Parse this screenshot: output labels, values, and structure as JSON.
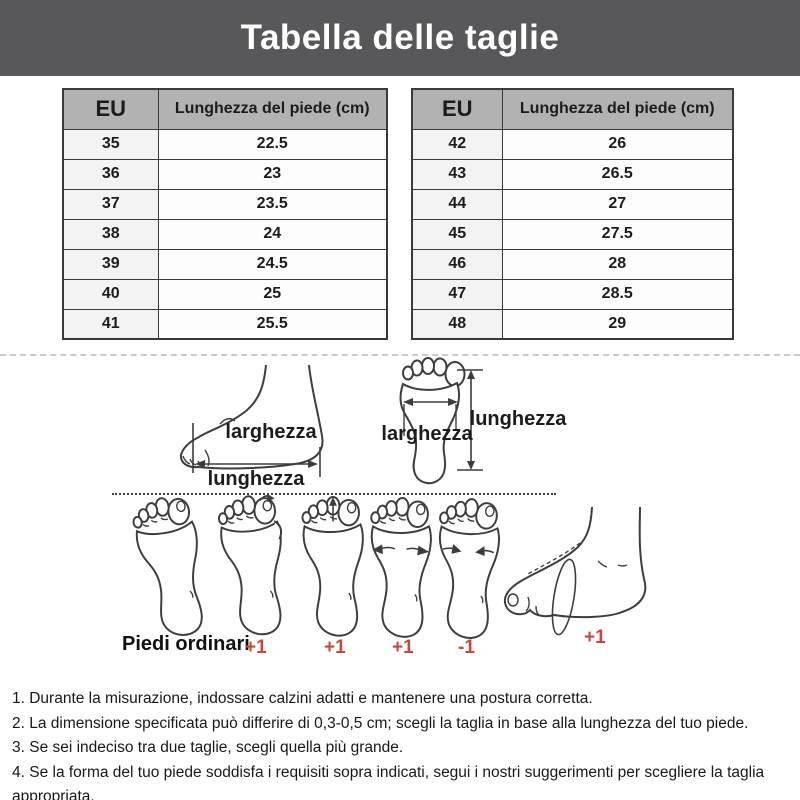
{
  "title": "Tabella delle taglie",
  "size_tables": [
    {
      "headers": [
        "EU",
        "Lunghezza del piede (cm)"
      ],
      "rows": [
        [
          "35",
          "22.5"
        ],
        [
          "36",
          "23"
        ],
        [
          "37",
          "23.5"
        ],
        [
          "38",
          "24"
        ],
        [
          "39",
          "24.5"
        ],
        [
          "40",
          "25"
        ],
        [
          "41",
          "25.5"
        ]
      ]
    },
    {
      "headers": [
        "EU",
        "Lunghezza del piede (cm)"
      ],
      "rows": [
        [
          "42",
          "26"
        ],
        [
          "43",
          "26.5"
        ],
        [
          "44",
          "27"
        ],
        [
          "45",
          "27.5"
        ],
        [
          "46",
          "28"
        ],
        [
          "47",
          "28.5"
        ],
        [
          "48",
          "29"
        ]
      ]
    }
  ],
  "measure_diagrams": {
    "side_view": {
      "width_label": "larghezza",
      "length_label": "lunghezza"
    },
    "top_view": {
      "width_label": "larghezza",
      "length_label": "lunghezza"
    }
  },
  "foot_types": {
    "base_label": "Piedi ordinari",
    "marks": [
      "+1",
      "+1",
      "+1",
      "-1",
      "+1"
    ],
    "mark_color": "#c9463d"
  },
  "notes": [
    "1. Durante la misurazione, indossare calzini adatti e mantenere una postura corretta.",
    "2. La dimensione specificata può differire di 0,3-0,5 cm; scegli la taglia in base alla lunghezza del tuo piede.",
    "3. Se sei indeciso tra due taglie, scegli quella più grande.",
    "4. Se la forma del tuo piede soddisfa i requisiti sopra indicati, segui i nostri suggerimenti per scegliere la taglia appropriata."
  ],
  "colors": {
    "banner_bg": "#58585a",
    "table_header_bg": "#b2b2b2",
    "table_border": "#3a3a3a",
    "mark_red": "#c9463d"
  }
}
